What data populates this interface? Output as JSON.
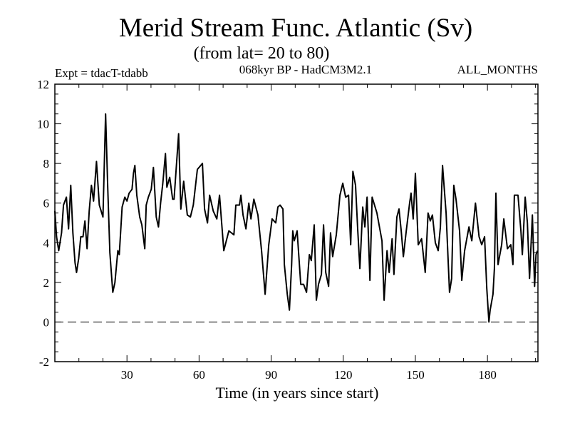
{
  "chart_data": {
    "type": "line",
    "title": "Merid Stream Func. Atlantic (Sv)",
    "subtitle": "(from lat= 20 to 80)",
    "left_label": "Expt = tdacT-tdabb",
    "center_label": "068kyr BP - HadCM3M2.1",
    "right_label": "ALL_MONTHS",
    "xlabel": "Time (in years since start)",
    "ylabel": "",
    "xlim": [
      0,
      201
    ],
    "ylim": [
      -2,
      12
    ],
    "xticks": [
      30,
      60,
      90,
      120,
      150,
      180
    ],
    "xtick_labels": [
      "30",
      "60",
      "90",
      "120",
      "150",
      "180"
    ],
    "yticks": [
      -2,
      0,
      2,
      4,
      6,
      8,
      10,
      12
    ],
    "ytick_labels": [
      "-2",
      "0",
      "2",
      "4",
      "6",
      "8",
      "10",
      "12"
    ],
    "reference_line": {
      "y": 0,
      "style": "dashed"
    },
    "line_color": "#000000",
    "series": [
      {
        "name": "Merid Stream Func.",
        "x": [
          0,
          0.7,
          1.6,
          2.8,
          3.6,
          4.8,
          5.7,
          6.6,
          7.5,
          8.4,
          9,
          9.9,
          10.8,
          11.7,
          12.5,
          13.4,
          14.3,
          15.2,
          16.1,
          17.3,
          18.5,
          20,
          21.1,
          22,
          22.9,
          24.1,
          25,
          26.2,
          26.8,
          28,
          29.1,
          30,
          30.9,
          32.1,
          32.7,
          33.3,
          34.1,
          35.3,
          36.2,
          37.4,
          38,
          38.9,
          40.1,
          41,
          42.2,
          43.1,
          44,
          44.9,
          46,
          46.6,
          47.8,
          49,
          49.6,
          51.5,
          52.4,
          53.6,
          55.1,
          56.4,
          57.6,
          59.3,
          61.4,
          62.3,
          63.5,
          64.4,
          65.9,
          67.4,
          68.5,
          70.3,
          72.4,
          74.5,
          75.3,
          76.8,
          77.4,
          78.3,
          79.5,
          80.7,
          81.6,
          82.8,
          84.5,
          86,
          87.5,
          89,
          90.4,
          91.9,
          92.8,
          93.7,
          94.9,
          95.5,
          96.7,
          97.6,
          98.5,
          99,
          99.6,
          100.8,
          102.3,
          103.5,
          104.7,
          105.9,
          106.7,
          107.9,
          108.8,
          109.7,
          110.9,
          111.8,
          112.7,
          113.9,
          114.7,
          115.6,
          117.1,
          118.6,
          119.8,
          121,
          122.2,
          123.1,
          124,
          125.1,
          126,
          126.9,
          128.1,
          129,
          129.9,
          131.1,
          132,
          134,
          136.1,
          137,
          138.2,
          139.1,
          140.3,
          141.1,
          142.3,
          143.2,
          144.1,
          145,
          146.2,
          147.6,
          148.2,
          149.1,
          150,
          151.2,
          152.6,
          154.1,
          155.3,
          156.2,
          157.1,
          158.3,
          159.5,
          160.4,
          161.3,
          162.8,
          164.2,
          165.1,
          166,
          166.9,
          168.4,
          169.3,
          170.5,
          172.3,
          173.5,
          175,
          176.5,
          177.6,
          178.8,
          179.7,
          180.6,
          181.1,
          182.3,
          182.9,
          183.5,
          184.4,
          185.9,
          186.8,
          188.3,
          189.7,
          190.6,
          191.2,
          192.7,
          193.9,
          194.5,
          195.7,
          196.6,
          197.5,
          198.7,
          199.6,
          200.2,
          200.8
        ],
        "y": [
          5.6,
          4.3,
          3.6,
          4.5,
          5.9,
          6.3,
          4.7,
          6.9,
          4.5,
          3.0,
          2.5,
          3.2,
          4.3,
          4.3,
          5.1,
          3.7,
          5.6,
          6.9,
          6.1,
          8.1,
          5.9,
          5.3,
          10.5,
          6.8,
          3.5,
          1.5,
          2.0,
          3.6,
          3.4,
          5.8,
          6.3,
          6.1,
          6.5,
          6.7,
          7.5,
          7.9,
          6.4,
          5.3,
          4.9,
          3.7,
          5.9,
          6.3,
          6.7,
          7.8,
          5.3,
          4.8,
          6.0,
          7.0,
          8.5,
          6.8,
          7.3,
          6.2,
          6.2,
          9.5,
          5.7,
          7.1,
          5.4,
          5.3,
          5.9,
          7.7,
          8.0,
          5.7,
          5.0,
          6.4,
          5.6,
          5.2,
          6.4,
          3.6,
          4.6,
          4.4,
          5.9,
          5.9,
          6.4,
          5.4,
          4.7,
          6.0,
          5.2,
          6.2,
          5.4,
          3.6,
          1.4,
          3.9,
          5.2,
          5.0,
          5.8,
          5.9,
          5.7,
          2.9,
          1.4,
          0.6,
          2.9,
          4.6,
          4.1,
          4.6,
          1.9,
          1.9,
          1.5,
          3.4,
          3.1,
          4.9,
          1.1,
          1.9,
          2.4,
          4.9,
          2.5,
          1.8,
          4.5,
          3.3,
          4.4,
          6.4,
          7.0,
          6.3,
          6.4,
          3.9,
          7.6,
          6.9,
          4.7,
          2.7,
          5.8,
          4.8,
          6.3,
          2.1,
          6.3,
          5.5,
          4.1,
          1.1,
          3.6,
          2.5,
          4.2,
          2.4,
          5.3,
          5.7,
          4.6,
          3.3,
          4.6,
          6.0,
          6.5,
          5.2,
          7.5,
          3.9,
          4.2,
          2.5,
          5.5,
          5.1,
          5.4,
          4.0,
          3.6,
          4.8,
          7.9,
          5.5,
          1.5,
          2.2,
          6.9,
          6.2,
          4.6,
          2.1,
          3.6,
          4.8,
          4.1,
          6.0,
          4.3,
          3.9,
          4.3,
          1.7,
          0.0,
          0.6,
          1.4,
          2.7,
          6.5,
          2.9,
          3.9,
          5.2,
          3.7,
          3.9,
          2.9,
          6.4,
          6.4,
          4.6,
          3.4,
          6.3,
          5.0,
          2.2,
          5.4,
          1.8,
          3.4,
          3.6
        ]
      }
    ]
  }
}
